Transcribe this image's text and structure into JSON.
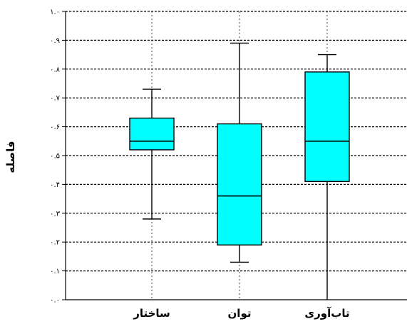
{
  "chart_data": {
    "type": "boxplot",
    "ylabel": "فاصله",
    "xlabel": "",
    "ylim": [
      0,
      1
    ],
    "y_ticks": [
      {
        "value": 0.0,
        "label": "۰.۰"
      },
      {
        "value": 0.1,
        "label": "۰.۱"
      },
      {
        "value": 0.2,
        "label": "۰.۲"
      },
      {
        "value": 0.3,
        "label": "۰.۳"
      },
      {
        "value": 0.4,
        "label": "۰.۴"
      },
      {
        "value": 0.5,
        "label": "۰.۵"
      },
      {
        "value": 0.6,
        "label": "۰.۶"
      },
      {
        "value": 0.7,
        "label": "۰.۷"
      },
      {
        "value": 0.8,
        "label": "۰.۸"
      },
      {
        "value": 0.9,
        "label": "۰.۹"
      },
      {
        "value": 1.0,
        "label": "۱.۰"
      }
    ],
    "grid": "horizontal-dashed",
    "box_color": "#00ffff",
    "categories": [
      "ساختار",
      "توان",
      "تاب‌آوری"
    ],
    "boxes": [
      {
        "category": "ساختار",
        "min": 0.28,
        "q1": 0.52,
        "median": 0.55,
        "q3": 0.63,
        "max": 0.73
      },
      {
        "category": "توان",
        "min": 0.13,
        "q1": 0.19,
        "median": 0.36,
        "q3": 0.61,
        "max": 0.89
      },
      {
        "category": "تاب‌آوری",
        "min": 0.0,
        "q1": 0.41,
        "median": 0.55,
        "q3": 0.79,
        "max": 0.85
      }
    ]
  }
}
